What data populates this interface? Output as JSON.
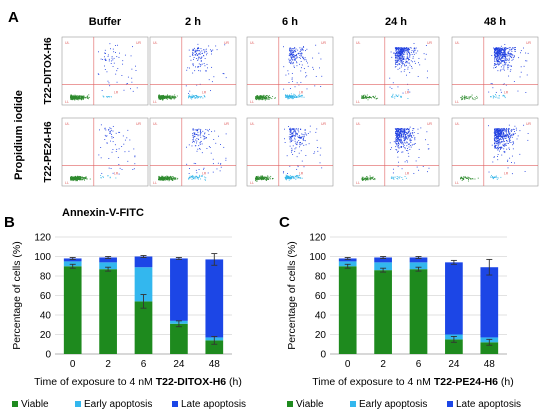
{
  "panel_a": {
    "letter": "A",
    "y_axis_label": "Propidium iodide",
    "x_axis_label": "Annexin-V-FITC",
    "columns": [
      "Buffer",
      "2 h",
      "6 h",
      "24 h",
      "48 h"
    ],
    "rows": [
      "T22-DITOX-H6",
      "T22-PE24-H6"
    ],
    "quadrant_labels": [
      "UL",
      "UR",
      "LL",
      "LR"
    ],
    "colors": {
      "viable": "#2e8b2e",
      "early": "#33b5e8",
      "late": "#1f3fe0",
      "gate": "#e06060"
    }
  },
  "chart_data": [
    {
      "type": "bar",
      "stacked": true,
      "panel": "B",
      "categories": [
        "0",
        "2",
        "6",
        "24",
        "48"
      ],
      "series": [
        {
          "name": "Viable",
          "color": "#1e8a1e",
          "values": [
            90,
            87,
            54,
            31,
            14
          ]
        },
        {
          "name": "Early apoptosis",
          "color": "#33b7ee",
          "values": [
            5,
            7,
            35,
            3,
            3
          ]
        },
        {
          "name": "Late apoptosis",
          "color": "#1c46e6",
          "values": [
            3,
            5,
            11,
            64,
            80
          ]
        }
      ],
      "errors": {
        "viable": [
          2,
          2,
          7,
          3,
          4
        ],
        "total": [
          1,
          1,
          1,
          1,
          6
        ]
      },
      "xlabel_prefix": "Time of exposure to 4 nM ",
      "xlabel_bold": "T22-DITOX-H6",
      "xlabel_suffix": " (h)",
      "ylabel": "Percentage of cells (%)",
      "ylim": [
        0,
        120
      ],
      "yticks": [
        "0",
        "20",
        "40",
        "60",
        "80",
        "100",
        "120"
      ],
      "grid": true,
      "legend_position": "bottom"
    },
    {
      "type": "bar",
      "stacked": true,
      "panel": "C",
      "categories": [
        "0",
        "2",
        "6",
        "24",
        "48"
      ],
      "series": [
        {
          "name": "Viable",
          "color": "#1e8a1e",
          "values": [
            90,
            86,
            87,
            15,
            12
          ]
        },
        {
          "name": "Early apoptosis",
          "color": "#33b7ee",
          "values": [
            5,
            8,
            7,
            5,
            5
          ]
        },
        {
          "name": "Late apoptosis",
          "color": "#1c46e6",
          "values": [
            3,
            5,
            5,
            74,
            72
          ]
        }
      ],
      "errors": {
        "viable": [
          2,
          2,
          2,
          3,
          3
        ],
        "total": [
          1,
          1,
          1,
          2,
          8
        ]
      },
      "xlabel_prefix": "Time of exposure to 4 nM ",
      "xlabel_bold": "T22-PE24-H6",
      "xlabel_suffix": " (h)",
      "ylabel": "Percentage of cells (%)",
      "ylim": [
        0,
        120
      ],
      "yticks": [
        "0",
        "20",
        "40",
        "60",
        "80",
        "100",
        "120"
      ],
      "grid": true,
      "legend_position": "bottom"
    }
  ]
}
